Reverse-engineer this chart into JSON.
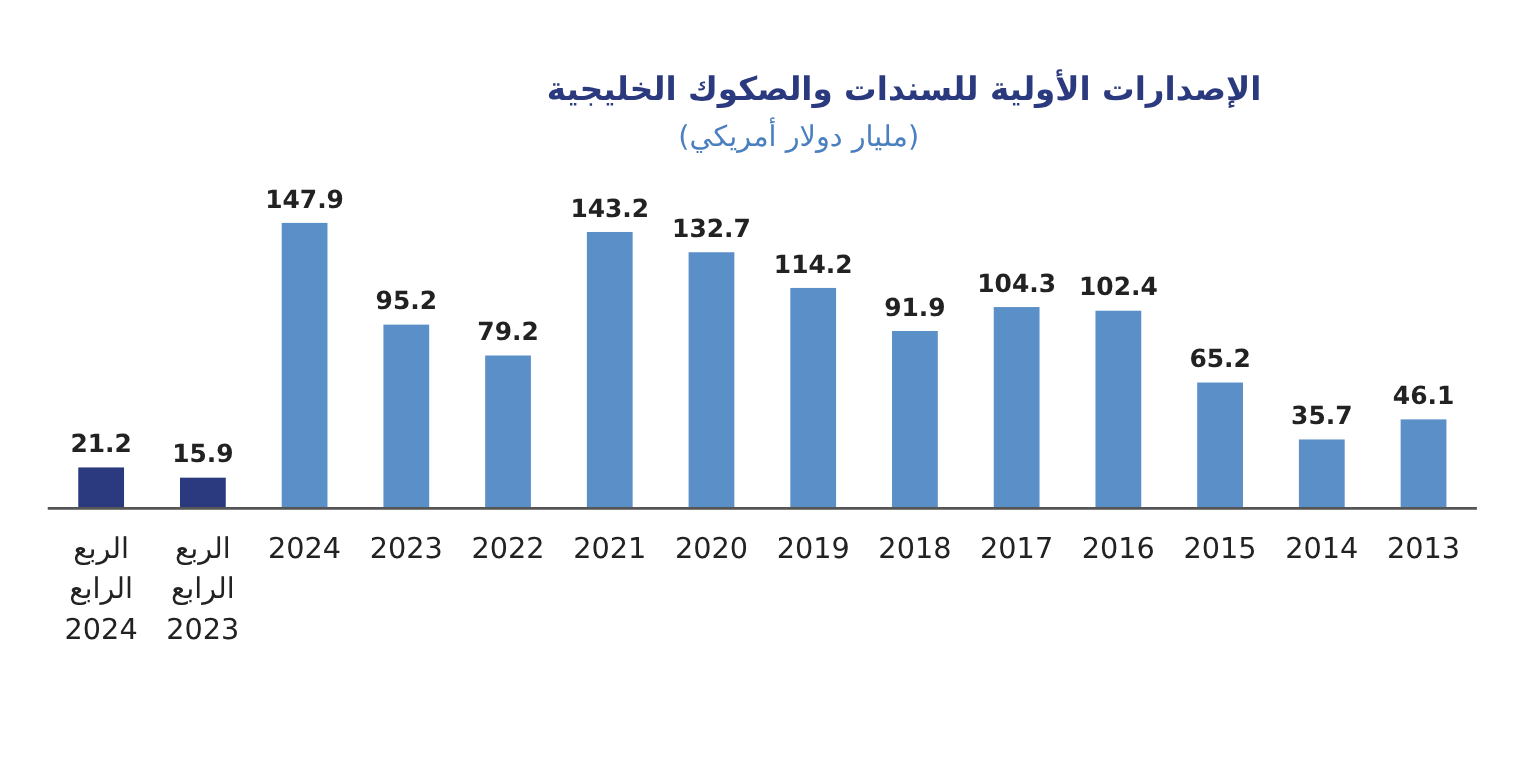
{
  "chart_data": {
    "type": "bar",
    "title": "الإصدارات الأولية للسندات والصكوك الخليجية",
    "subtitle": "(مليار دولار أمريكي)",
    "categories": [
      "الربع الرابع 2024",
      "الربع الرابع 2023",
      "2024",
      "2023",
      "2022",
      "2021",
      "2020",
      "2019",
      "2018",
      "2017",
      "2016",
      "2015",
      "2014",
      "2013"
    ],
    "values": [
      21.2,
      15.9,
      147.9,
      95.2,
      79.2,
      143.2,
      132.7,
      114.2,
      91.9,
      104.3,
      102.4,
      65.2,
      35.7,
      46.1
    ],
    "colors": [
      "#2b3a7e",
      "#2b3a7e",
      "#5b8fc8",
      "#5b8fc8",
      "#5b8fc8",
      "#5b8fc8",
      "#5b8fc8",
      "#5b8fc8",
      "#5b8fc8",
      "#5b8fc8",
      "#5b8fc8",
      "#5b8fc8",
      "#5b8fc8",
      "#5b8fc8"
    ],
    "data_labels": true
  }
}
